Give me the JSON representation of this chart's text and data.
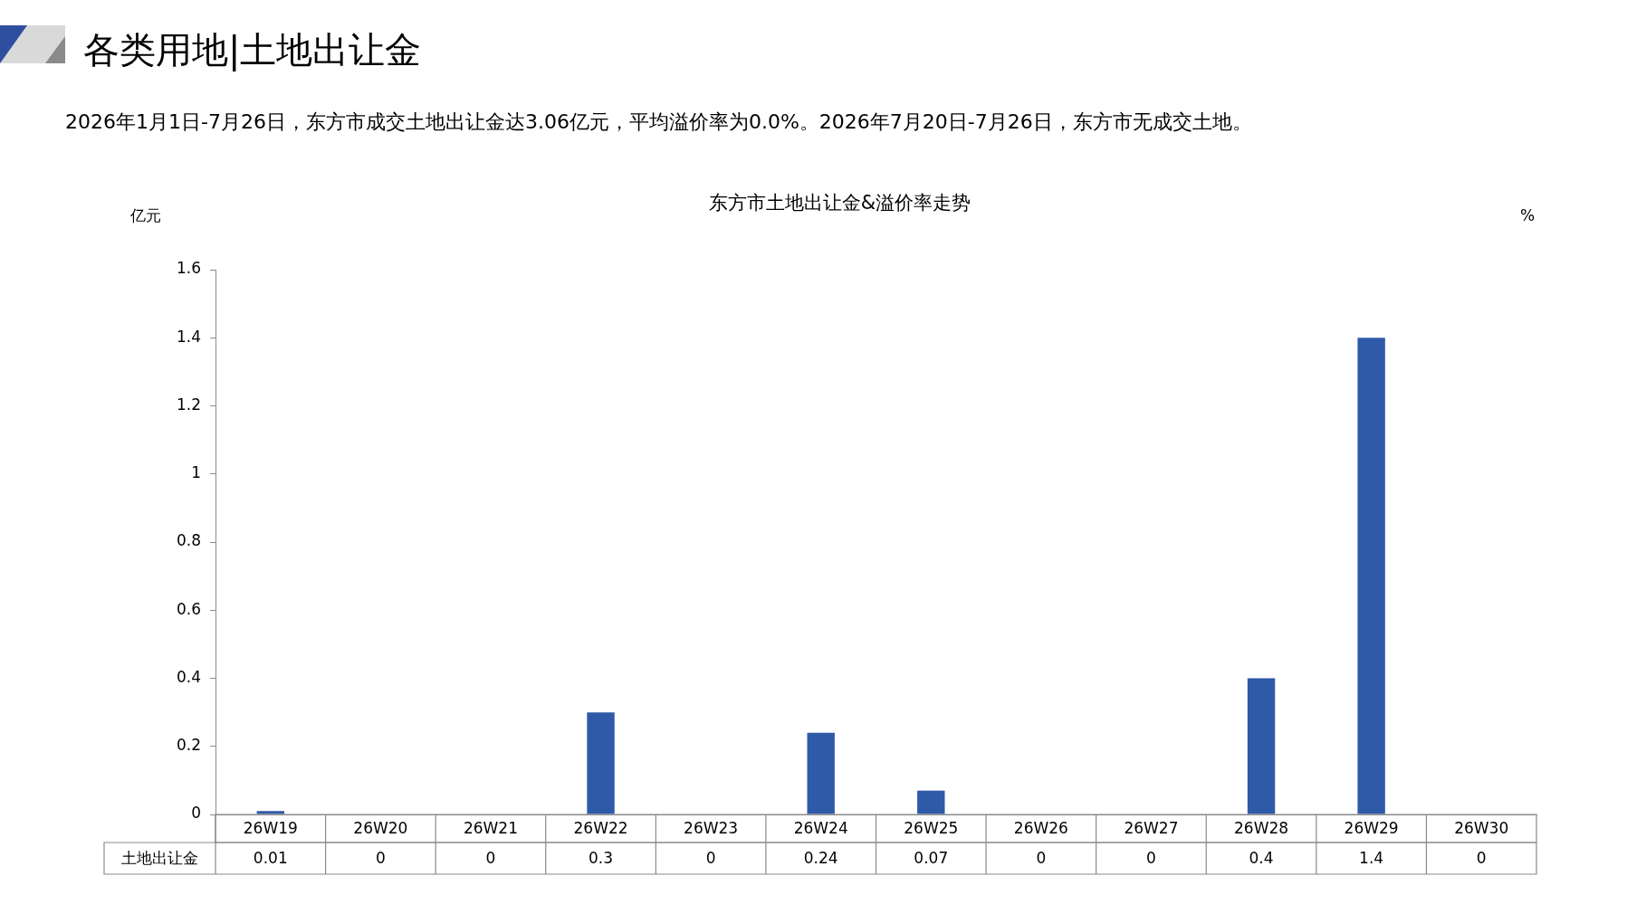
{
  "chart_data": {
    "type": "bar",
    "title": "东方市土地出让金&溢价率走势",
    "annotations": [
      "各类用地|土地出让金",
      "2026年1月1日-7月26日，东方市成交土地出让金达3.06亿元，平均溢价率为0.0%。2026年7月20日-7月26日，东方市无成交土地。"
    ],
    "ylabel": "亿元",
    "y2label": "%",
    "categories": [
      "26W19",
      "26W20",
      "26W21",
      "26W22",
      "26W23",
      "26W24",
      "26W25",
      "26W26",
      "26W27",
      "26W28",
      "26W29",
      "26W30"
    ],
    "series": [
      {
        "name": "土地出让金",
        "color": "#2e5aa8",
        "values": [
          0.01,
          0,
          0,
          0.3,
          0,
          0.24,
          0.07,
          0,
          0,
          0.4,
          1.4,
          0
        ]
      }
    ],
    "ylim": [
      0,
      1.6
    ],
    "yticks": [
      0,
      0.2,
      0.4,
      0.6,
      0.8,
      1,
      1.2,
      1.4,
      1.6
    ],
    "grid": false,
    "legend": false,
    "data_labels": true
  }
}
